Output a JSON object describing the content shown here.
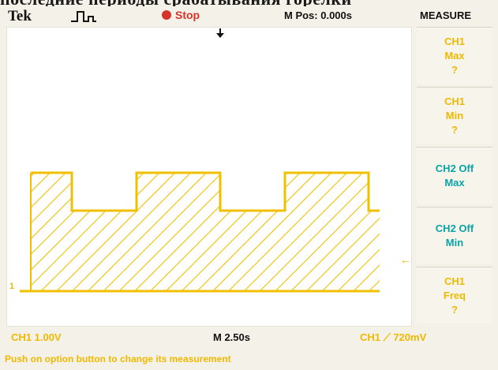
{
  "header_cut_text": "последние периоды срабатывания горелки",
  "topbar": {
    "brand": "Tek",
    "trigger_icon": "pulse-trigger-icon",
    "run_state": "Stop",
    "position": "M Pos: 0.000s",
    "menu_title": "MEASURE"
  },
  "screen": {
    "ch_marker": "1",
    "trigger_arrow_icon": "trigger-position-arrow-icon",
    "level_marker": "←"
  },
  "side_menu": {
    "items": [
      {
        "lines": [
          "CH1",
          "Max",
          "?"
        ],
        "color": "#f0b900"
      },
      {
        "lines": [
          "CH1",
          "Min",
          "?"
        ],
        "color": "#f0b900"
      },
      {
        "lines": [
          "CH2 Off",
          "Max"
        ],
        "color": "#0aa3a8"
      },
      {
        "lines": [
          "CH2 Off",
          "Min"
        ],
        "color": "#0aa3a8"
      },
      {
        "lines": [
          "CH1",
          "Freq",
          "?"
        ],
        "color": "#f0b900"
      }
    ]
  },
  "bottom": {
    "ch1_scale": "CH1  1.00V",
    "timebase": "M 2.50s",
    "trigger_info": "CH1 ⟋ 720mV"
  },
  "hint": "Push on option button to change its measurement",
  "colors": {
    "trace": "#f0c000",
    "accent_teal": "#0aa3a8",
    "stop_red": "#d6342a"
  }
}
